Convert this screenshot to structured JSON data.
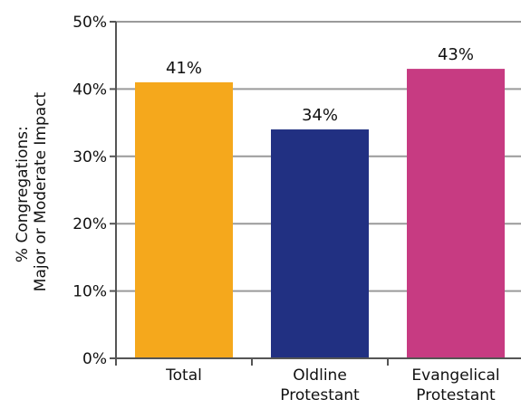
{
  "chart_data": {
    "type": "bar",
    "categories": [
      [
        "Total"
      ],
      [
        "Oldline",
        "Protestant"
      ],
      [
        "Evangelical",
        "Protestant"
      ]
    ],
    "values": [
      41,
      34,
      43
    ],
    "data_labels": [
      "41%",
      "34%",
      "43%"
    ],
    "colors": [
      "#f5a81c",
      "#213082",
      "#c73b82"
    ],
    "ylabel_lines": [
      "% Congregations:",
      "Major or Moderate Impact"
    ],
    "ylim": [
      0,
      50
    ],
    "yticks": [
      0,
      10,
      20,
      30,
      40,
      50
    ],
    "ytick_labels": [
      "0%",
      "10%",
      "20%",
      "30%",
      "40%",
      "50%"
    ],
    "grid": true
  }
}
